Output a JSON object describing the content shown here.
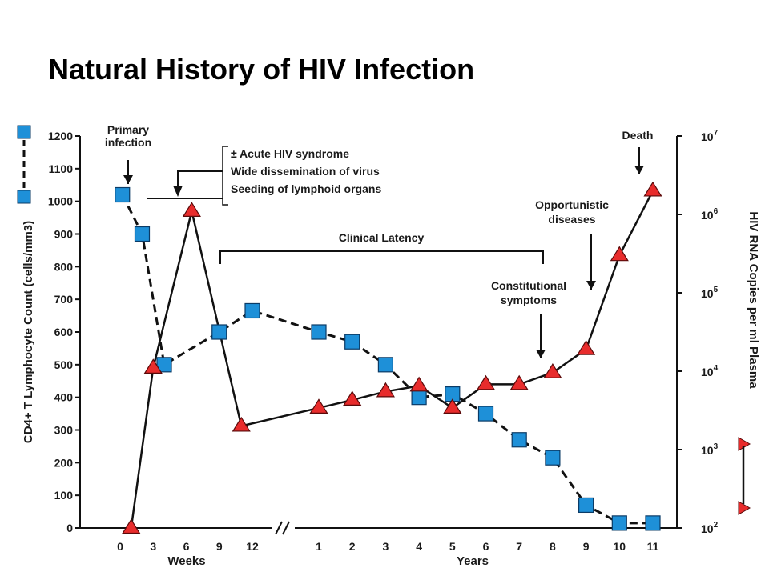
{
  "slide": {
    "title": "Natural History of HIV Infection"
  },
  "colors": {
    "cd4_marker": "#1e90d8",
    "rna_marker": "#e82c2c",
    "line": "#111111"
  },
  "chart_data": {
    "type": "line",
    "title": "",
    "ylabel_left": "CD4+ T Lymphocyte Count (cells/mm3)",
    "ylabel_right": "HIV RNA Copies per ml Plasma",
    "ylim_left": [
      0,
      1200
    ],
    "left_ticks": [
      0,
      100,
      200,
      300,
      400,
      500,
      600,
      700,
      800,
      900,
      1000,
      1100,
      1200
    ],
    "right_scale": "log",
    "right_ticks": [
      "10^2",
      "10^3",
      "10^4",
      "10^5",
      "10^6",
      "10^7"
    ],
    "x_segments": [
      {
        "label": "Weeks",
        "ticks": [
          "0",
          "3",
          "6",
          "9",
          "12"
        ]
      },
      {
        "label": "Years",
        "ticks": [
          "1",
          "2",
          "3",
          "4",
          "5",
          "6",
          "7",
          "8",
          "9",
          "10",
          "11"
        ]
      }
    ],
    "axis_break": "between 12 weeks and 1 year",
    "series": [
      {
        "name": "CD4+ T Lymphocyte Count",
        "marker": "square",
        "line": "dashed",
        "axis": "left",
        "points": [
          {
            "x": "0.2 wk",
            "y": 1020
          },
          {
            "x": "2 wk",
            "y": 900
          },
          {
            "x": "4 wk",
            "y": 500
          },
          {
            "x": "9 wk",
            "y": 600
          },
          {
            "x": "12 wk",
            "y": 665
          },
          {
            "x": "1 yr",
            "y": 600
          },
          {
            "x": "2 yr",
            "y": 570
          },
          {
            "x": "3 yr",
            "y": 500
          },
          {
            "x": "4 yr",
            "y": 400
          },
          {
            "x": "5 yr",
            "y": 410
          },
          {
            "x": "6 yr",
            "y": 350
          },
          {
            "x": "7 yr",
            "y": 270
          },
          {
            "x": "8 yr",
            "y": 215
          },
          {
            "x": "9 yr",
            "y": 70
          },
          {
            "x": "10 yr",
            "y": 15
          },
          {
            "x": "11 yr",
            "y": 15
          }
        ]
      },
      {
        "name": "HIV RNA Copies per ml Plasma",
        "marker": "triangle",
        "line": "solid",
        "axis": "right",
        "points": [
          {
            "x": "1 wk",
            "y": 100
          },
          {
            "x": "3 wk",
            "y": 11000
          },
          {
            "x": "6.5 wk",
            "y": 1100000
          },
          {
            "x": "11 wk",
            "y": 2000
          },
          {
            "x": "1 yr",
            "y": 3400
          },
          {
            "x": "2 yr",
            "y": 4300
          },
          {
            "x": "3 yr",
            "y": 5500
          },
          {
            "x": "4 yr",
            "y": 6500
          },
          {
            "x": "5 yr",
            "y": 3400
          },
          {
            "x": "6 yr",
            "y": 6800
          },
          {
            "x": "7 yr",
            "y": 6800
          },
          {
            "x": "8 yr",
            "y": 9600
          },
          {
            "x": "9 yr",
            "y": 19000
          },
          {
            "x": "10 yr",
            "y": 300000
          },
          {
            "x": "11 yr",
            "y": 2000000
          }
        ]
      }
    ],
    "annotations": [
      {
        "lines": [
          "Primary",
          "infection"
        ]
      },
      {
        "lines": [
          "± Acute HIV syndrome",
          "Wide dissemination of virus",
          "Seeding of lymphoid organs"
        ]
      },
      {
        "lines": [
          "Clinical Latency"
        ]
      },
      {
        "lines": [
          "Constitutional",
          "symptoms"
        ]
      },
      {
        "lines": [
          "Opportunistic",
          "diseases"
        ]
      },
      {
        "lines": [
          "Death"
        ]
      }
    ]
  }
}
